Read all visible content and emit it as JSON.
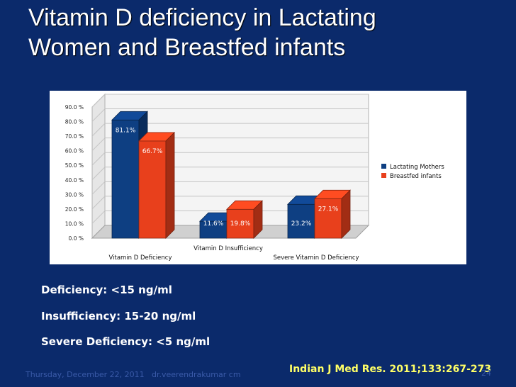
{
  "slide": {
    "title_line1": "Vitamin D deficiency in Lactating",
    "title_line2": "Women and Breastfed infants",
    "definitions": [
      "Deficiency: <15 ng/ml",
      "Insufficiency: 15-20 ng/ml",
      "Severe Deficiency: <5 ng/ml"
    ],
    "citation": "Indian J Med Res. 2011;133:267-273",
    "footer_date": "Thursday, December 22, 2011",
    "footer_author": "dr.veerendrakumar cm",
    "page_number": "24",
    "colors": {
      "background": "#0b2a6b",
      "citation": "#ffff66"
    }
  },
  "chart_data": {
    "type": "bar",
    "categories": [
      "Vitamin D Deficiency",
      "Vitamin D Insufficiency",
      "Severe Vitamin D Deficiency"
    ],
    "series": [
      {
        "name": "Lactating Mothers",
        "values": [
          81.1,
          11.6,
          23.2
        ],
        "labels": [
          "81.1%",
          "11.6%",
          "23.2%"
        ],
        "color": "#0e3f82"
      },
      {
        "name": "Breastfed infants",
        "values": [
          66.7,
          19.8,
          27.1
        ],
        "labels": [
          "66.7%",
          "19.8%",
          "27.1%"
        ],
        "color": "#e8401c"
      }
    ],
    "y_ticks": [
      "0.0 %",
      "10.0 %",
      "20.0 %",
      "30.0 %",
      "40.0 %",
      "50.0 %",
      "60.0 %",
      "70.0 %",
      "80.0 %",
      "90.0 %"
    ],
    "ylim": [
      0,
      90
    ],
    "grid": true,
    "legend_position": "right",
    "style": "3d"
  }
}
